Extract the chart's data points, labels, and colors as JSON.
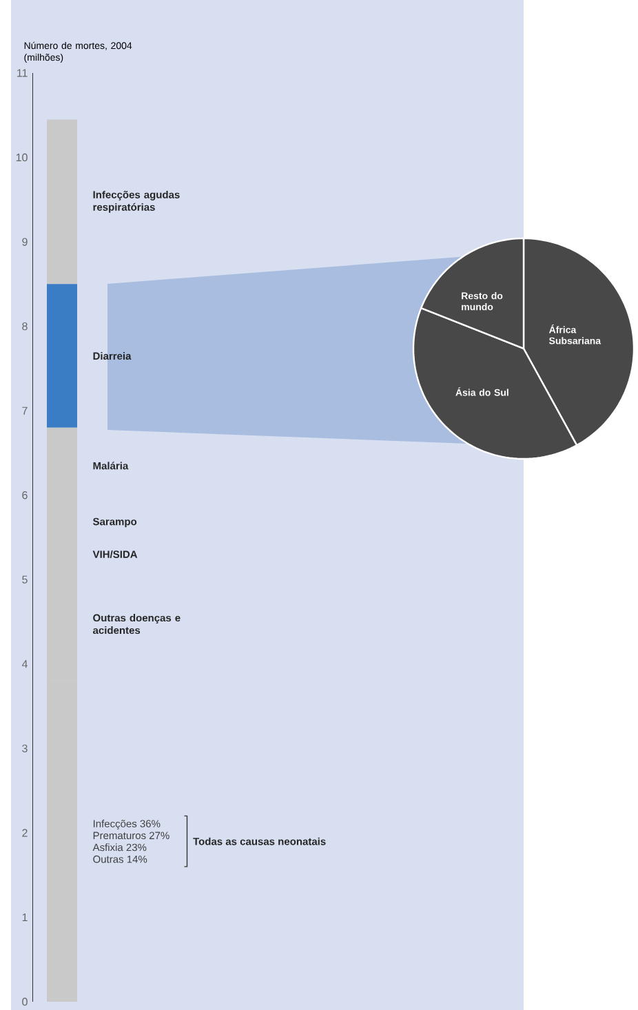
{
  "chart_data": [
    {
      "type": "bar",
      "stacked": true,
      "ylabel": "Número de mortes, 2004 (milhões)",
      "categories": [
        null
      ],
      "ylim": [
        0,
        11
      ],
      "yticks": [
        0,
        1,
        2,
        3,
        4,
        5,
        6,
        7,
        8,
        9,
        10,
        11
      ],
      "series": [
        {
          "name": "Todas as causas neonatais",
          "color": "#c9c9c9",
          "values": [
            3.8
          ]
        },
        {
          "name": "Outras doenças e acidentes",
          "color": "#c9c9c9",
          "values": [
            1.35
          ]
        },
        {
          "name": "VIH/SIDA",
          "color": "#c9c9c9",
          "values": [
            0.3
          ]
        },
        {
          "name": "Sarampo",
          "color": "#c9c9c9",
          "values": [
            0.45
          ]
        },
        {
          "name": "Malária",
          "color": "#c9c9c9",
          "values": [
            0.9
          ]
        },
        {
          "name": "Diarreia",
          "color": "#3b7dc4",
          "values": [
            1.7
          ]
        },
        {
          "name": "Infecções agudas respiratórias",
          "color": "#c9c9c9",
          "values": [
            1.95
          ]
        }
      ],
      "annotations": [
        "Infecções 36%",
        "Prematuros 27%",
        "Asfixia 23%",
        "Outras 14%"
      ]
    },
    {
      "type": "pie",
      "categories": [
        "África Subsariana",
        "Ásia do Sul",
        "Resto do mundo"
      ],
      "values": [
        42,
        39,
        19
      ],
      "colors": [
        "#484848",
        "#484848",
        "#484848"
      ]
    }
  ]
}
